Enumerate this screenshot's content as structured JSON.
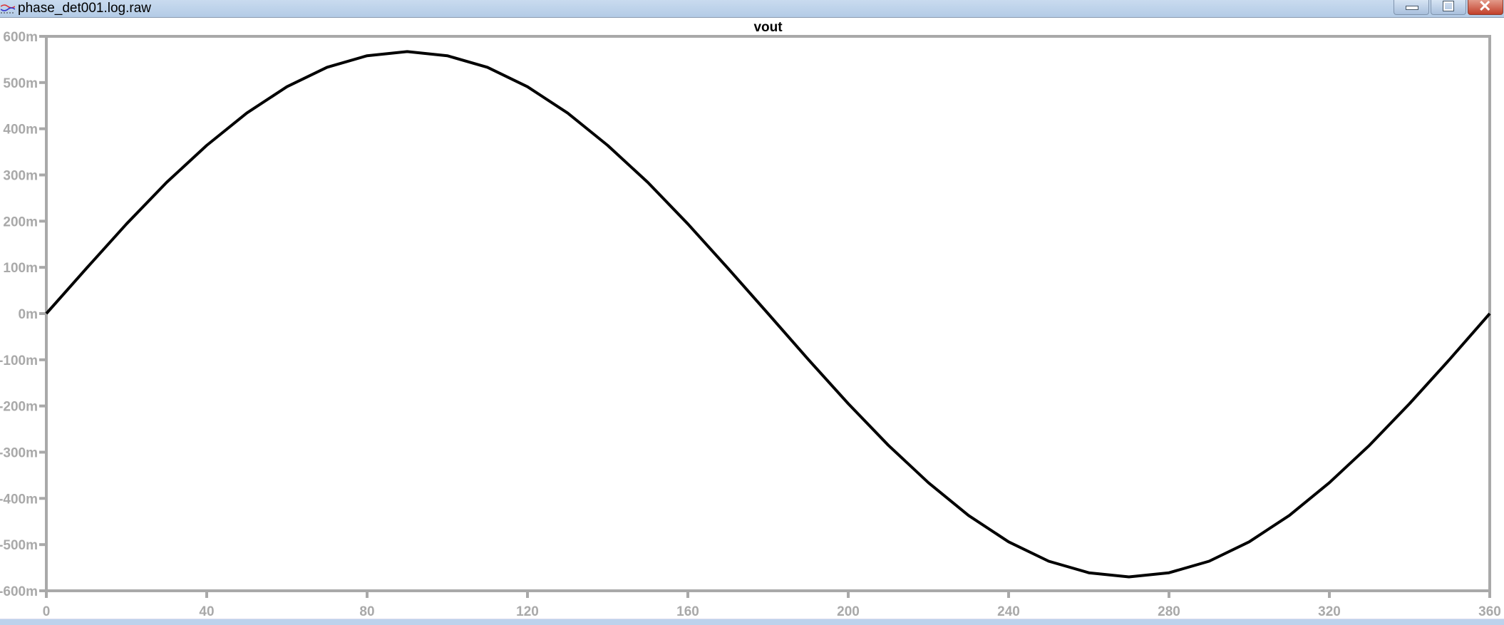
{
  "window": {
    "title": "phase_det001.log.raw"
  },
  "colors": {
    "axis": "#a9a9a9",
    "trace": "#000000",
    "tick_label": "#a9a9a9",
    "titlebar": "#b3cbe6",
    "close_button": "#c2402b"
  },
  "chart_data": {
    "type": "line",
    "title": "vout",
    "xlabel": "",
    "ylabel": "",
    "xlim": [
      0,
      360
    ],
    "ylim": [
      -0.6,
      0.6
    ],
    "grid": false,
    "x_ticks": [
      0,
      40,
      80,
      120,
      160,
      200,
      240,
      280,
      320,
      360
    ],
    "x_tick_labels": [
      "0",
      "40",
      "80",
      "120",
      "160",
      "200",
      "240",
      "280",
      "320",
      "360"
    ],
    "y_ticks": [
      0.6,
      0.5,
      0.4,
      0.3,
      0.2,
      0.1,
      0,
      -0.1,
      -0.2,
      -0.3,
      -0.4,
      -0.5,
      -0.6
    ],
    "y_tick_labels": [
      "600m",
      "500m",
      "400m",
      "300m",
      "200m",
      "100m",
      "0m",
      "-100m",
      "-200m",
      "-300m",
      "-400m",
      "-500m",
      "-600m"
    ],
    "series": [
      {
        "name": "vout",
        "x": [
          0,
          10,
          20,
          30,
          40,
          50,
          60,
          70,
          80,
          90,
          100,
          110,
          120,
          130,
          140,
          150,
          160,
          170,
          180,
          190,
          200,
          210,
          220,
          230,
          240,
          250,
          260,
          270,
          280,
          290,
          300,
          310,
          320,
          330,
          340,
          350,
          360
        ],
        "y": [
          0,
          0.098,
          0.194,
          0.284,
          0.364,
          0.434,
          0.491,
          0.533,
          0.558,
          0.567,
          0.558,
          0.533,
          0.491,
          0.434,
          0.364,
          0.284,
          0.194,
          0.098,
          0,
          -0.099,
          -0.195,
          -0.285,
          -0.366,
          -0.437,
          -0.494,
          -0.536,
          -0.561,
          -0.57,
          -0.561,
          -0.536,
          -0.494,
          -0.437,
          -0.366,
          -0.285,
          -0.195,
          -0.099,
          0
        ]
      }
    ]
  }
}
